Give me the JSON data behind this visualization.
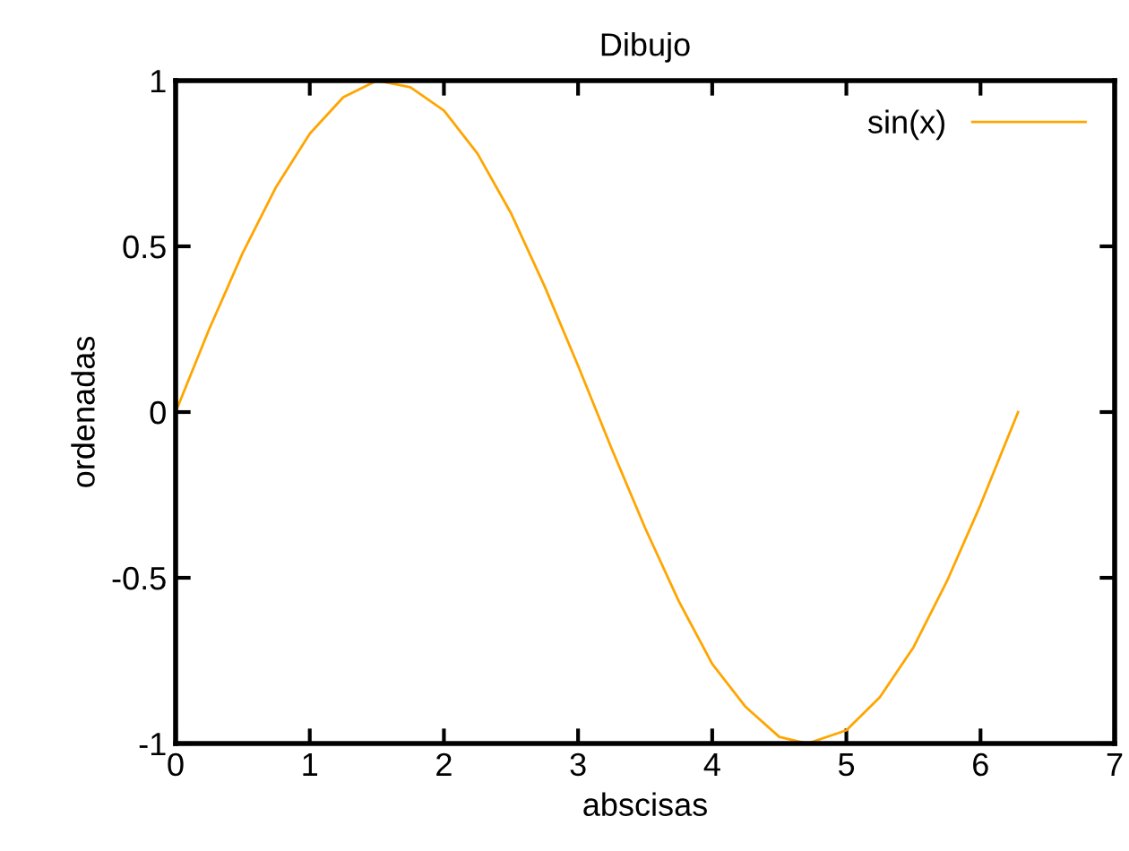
{
  "chart_data": {
    "type": "line",
    "title": "Dibujo",
    "xlabel": "abscisas",
    "ylabel": "ordenadas",
    "x": [
      0,
      0.25,
      0.5,
      0.75,
      1,
      1.25,
      1.5,
      1.75,
      2,
      2.25,
      2.5,
      2.75,
      3,
      3.25,
      3.5,
      3.75,
      4,
      4.25,
      4.5,
      4.71,
      5,
      5.25,
      5.5,
      5.75,
      6,
      6.28
    ],
    "series": [
      {
        "name": "sin(x)",
        "color": "#ffa500",
        "values": [
          0,
          0.25,
          0.48,
          0.68,
          0.84,
          0.95,
          1.0,
          0.98,
          0.91,
          0.78,
          0.6,
          0.38,
          0.14,
          -0.11,
          -0.35,
          -0.57,
          -0.76,
          -0.89,
          -0.98,
          -1.0,
          -0.96,
          -0.86,
          -0.71,
          -0.51,
          -0.28,
          0
        ]
      }
    ],
    "xlim": [
      0,
      7
    ],
    "ylim": [
      -1,
      1
    ],
    "xticks": [
      0,
      1,
      2,
      3,
      4,
      5,
      6,
      7
    ],
    "yticks": [
      1,
      0.5,
      0,
      -0.5,
      -1
    ],
    "legend": "top right",
    "grid": false,
    "marker": "none",
    "line_style": "solid"
  }
}
